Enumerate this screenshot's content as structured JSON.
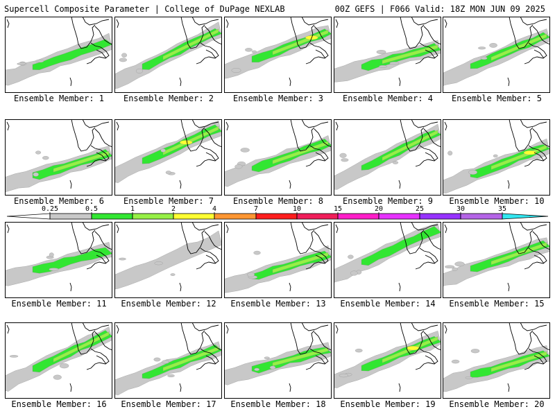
{
  "header": {
    "left_title": "Supercell Composite Parameter | College of DuPage NEXLAB",
    "right_title": "00Z GEFS | F066 Valid: 18Z MON JUN 09 2025"
  },
  "panels": [
    {
      "label": "Ensemble Member: 1",
      "intensity": 1
    },
    {
      "label": "Ensemble Member: 2",
      "intensity": 2
    },
    {
      "label": "Ensemble Member: 3",
      "intensity": 3
    },
    {
      "label": "Ensemble Member: 4",
      "intensity": 2
    },
    {
      "label": "Ensemble Member: 5",
      "intensity": 2
    },
    {
      "label": "Ensemble Member: 6",
      "intensity": 2
    },
    {
      "label": "Ensemble Member: 7",
      "intensity": 3
    },
    {
      "label": "Ensemble Member: 8",
      "intensity": 2
    },
    {
      "label": "Ensemble Member: 9",
      "intensity": 2
    },
    {
      "label": "Ensemble Member: 10",
      "intensity": 3
    },
    {
      "label": "Ensemble Member: 11",
      "intensity": 1
    },
    {
      "label": "Ensemble Member: 12",
      "intensity": 0
    },
    {
      "label": "Ensemble Member: 13",
      "intensity": 2
    },
    {
      "label": "Ensemble Member: 14",
      "intensity": 1
    },
    {
      "label": "Ensemble Member: 15",
      "intensity": 2
    },
    {
      "label": "Ensemble Member: 16",
      "intensity": 2
    },
    {
      "label": "Ensemble Member: 17",
      "intensity": 2
    },
    {
      "label": "Ensemble Member: 18",
      "intensity": 2
    },
    {
      "label": "Ensemble Member: 19",
      "intensity": 3
    },
    {
      "label": "Ensemble Member: 20",
      "intensity": 2
    }
  ],
  "legend": {
    "ticks": [
      "0.25",
      "0.5",
      "1",
      "2",
      "4",
      "7",
      "10",
      "15",
      "20",
      "25",
      "30",
      "35"
    ],
    "colors": [
      "#c8c8c8",
      "#32e632",
      "#96f046",
      "#ffff32",
      "#ff9632",
      "#ff1e1e",
      "#f01e5a",
      "#ff1ec8",
      "#e632ff",
      "#9632ff",
      "#b464e6",
      "#32e6f0"
    ]
  }
}
